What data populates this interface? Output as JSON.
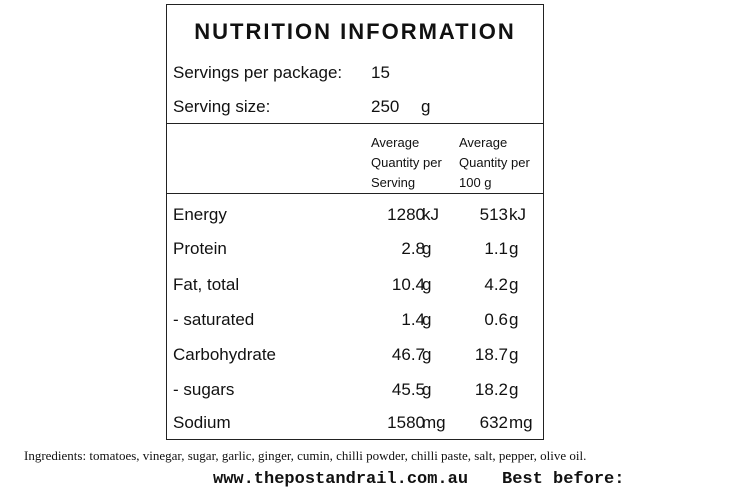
{
  "panel": {
    "title": "NUTRITION INFORMATION",
    "servings_label": "Servings per package:",
    "servings_value": "15",
    "serving_size_label": "Serving size:",
    "serving_size_value": "250",
    "serving_size_unit": "g",
    "col1_header": [
      "Average",
      "Quantity per",
      "Serving"
    ],
    "col2_header": [
      "Average",
      "Quantity per",
      "100 g"
    ],
    "rows": [
      {
        "name": "Energy",
        "per_serving": "1280",
        "unit1": "kJ",
        "per_100g": "513",
        "unit2": "kJ"
      },
      {
        "name": "Protein",
        "per_serving": "2.8",
        "unit1": "g",
        "per_100g": "1.1",
        "unit2": "g"
      },
      {
        "name": "Fat, total",
        "per_serving": "10.4",
        "unit1": "g",
        "per_100g": "4.2",
        "unit2": "g"
      },
      {
        "name": "- saturated",
        "per_serving": "1.4",
        "unit1": "g",
        "per_100g": "0.6",
        "unit2": "g"
      },
      {
        "name": "Carbohydrate",
        "per_serving": "46.7",
        "unit1": "g",
        "per_100g": "18.7",
        "unit2": "g"
      },
      {
        "name": "- sugars",
        "per_serving": "45.5",
        "unit1": "g",
        "per_100g": "18.2",
        "unit2": "g"
      },
      {
        "name": "Sodium",
        "per_serving": "1580",
        "unit1": "mg",
        "per_100g": "632",
        "unit2": "mg"
      }
    ]
  },
  "ingredients": "Ingredients: tomatoes, vinegar, sugar, garlic, ginger, cumin, chilli powder, chilli paste, salt, pepper, olive oil.",
  "footer": {
    "website": "www.thepostandrail.com.au",
    "best_before": "Best before:"
  }
}
